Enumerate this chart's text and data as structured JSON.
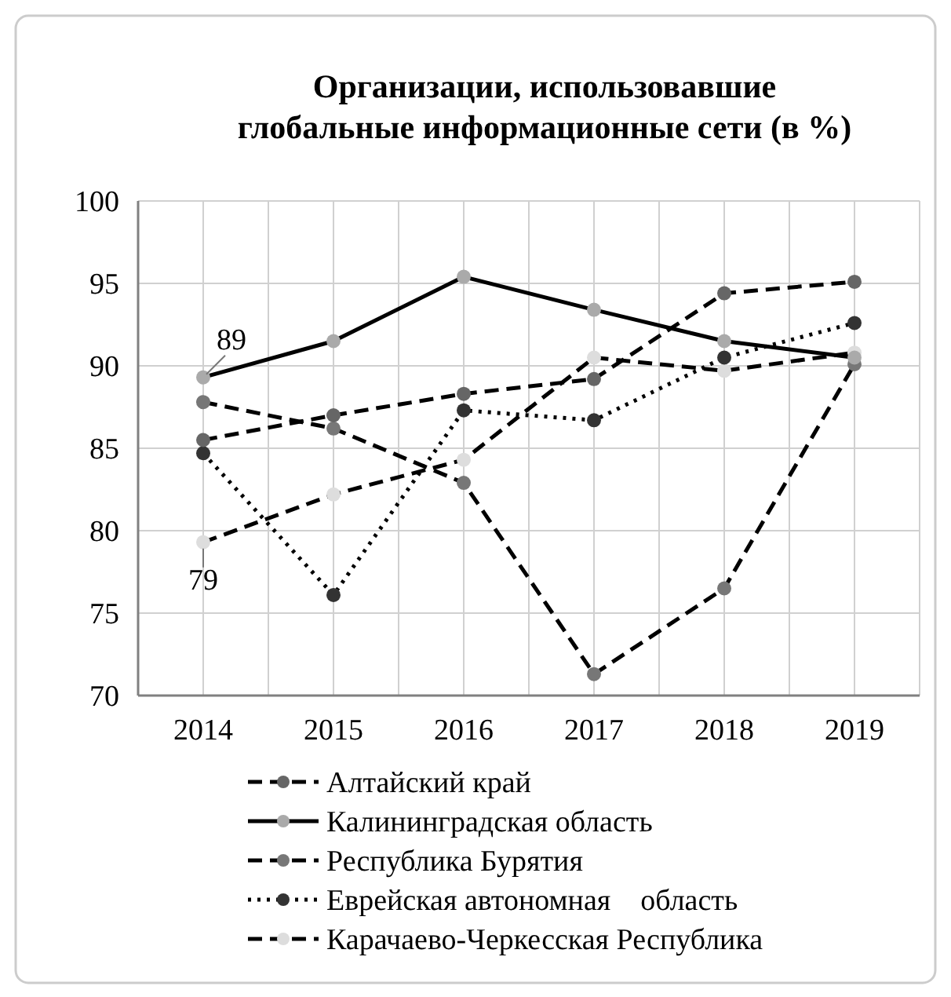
{
  "chart_data": {
    "type": "line",
    "title": "Организации, использовавшие\nглобальные информационные сети (в %)",
    "categories": [
      "2014",
      "2015",
      "2016",
      "2017",
      "2018",
      "2019"
    ],
    "series": [
      {
        "name": "Алтайский край",
        "color": "#666666",
        "line_style": "dashed",
        "values": [
          85.5,
          87.0,
          88.3,
          89.2,
          94.4,
          95.1
        ]
      },
      {
        "name": "Калининградская область",
        "color": "#aaaaaa",
        "line_style": "solid",
        "values": [
          89.3,
          91.5,
          95.4,
          93.4,
          91.5,
          90.5
        ]
      },
      {
        "name": "Республика Бурятия",
        "color": "#777777",
        "line_style": "dashed",
        "values": [
          87.8,
          86.2,
          82.9,
          71.3,
          76.5,
          90.1
        ]
      },
      {
        "name": "Еврейская автономная    область",
        "color": "#333333",
        "line_style": "dotted",
        "values": [
          84.7,
          76.1,
          87.3,
          86.7,
          90.5,
          92.6
        ]
      },
      {
        "name": "Карачаево-Черкесская Республика",
        "color": "#dddddd",
        "line_style": "dashed",
        "values": [
          79.3,
          82.2,
          84.3,
          90.5,
          89.7,
          90.8
        ]
      }
    ],
    "ylim": [
      70,
      100
    ],
    "yticks": [
      70,
      75,
      80,
      85,
      90,
      95,
      100
    ],
    "grid": true,
    "legend": "bottom",
    "marker": "circle",
    "annotations": [
      {
        "text": "89",
        "x": "2014",
        "y": 89.3
      },
      {
        "text": "79",
        "x": "2014",
        "y": 79.3
      }
    ]
  }
}
